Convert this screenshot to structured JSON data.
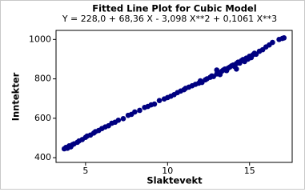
{
  "chart_data": {
    "type": "scatter",
    "title": "Fitted Line Plot for Cubic Model",
    "subtitle": "Y =  228,0 + 68,36 X - 3,098 X**2 + 0,1061 X**3",
    "x_label": "Slaktevekt",
    "y_label": "Inntekter",
    "xlim": [
      3.2,
      17.6
    ],
    "ylim": [
      376,
      1046
    ],
    "xticks": [
      5,
      10,
      15
    ],
    "yticks": [
      400,
      600,
      800,
      1000
    ],
    "grid": false,
    "series": [
      {
        "name": "Inntekter",
        "color": "#000080",
        "x": [
          3.7,
          3.8,
          3.9,
          4.0,
          4.1,
          4.2,
          4.3,
          4.5,
          4.6,
          4.8,
          5.0,
          5.1,
          5.3,
          5.5,
          5.6,
          5.8,
          6.0,
          6.2,
          6.4,
          6.6,
          6.8,
          7.0,
          7.3,
          7.6,
          7.8,
          8.0,
          8.3,
          8.6,
          8.8,
          9.0,
          9.2,
          9.5,
          9.8,
          10.0,
          10.2,
          10.4,
          10.6,
          10.8,
          11.0,
          11.1,
          11.3,
          11.5,
          11.7,
          11.9,
          12.0,
          12.1,
          12.3,
          12.4,
          12.6,
          12.7,
          12.8,
          13.0,
          13.1,
          13.2,
          13.3,
          13.4,
          13.5,
          13.6,
          13.7,
          13.8,
          13.9,
          14.0,
          14.1,
          14.2,
          14.3,
          14.4,
          14.5,
          14.6,
          14.7,
          14.8,
          14.9,
          15.0,
          15.1,
          15.2,
          15.3,
          15.4,
          15.6,
          15.8,
          16.0,
          16.2,
          16.4,
          16.8,
          17.0,
          17.1,
          14.2,
          13.0
        ],
        "values": [
          445,
          452,
          448,
          460,
          455,
          466,
          470,
          478,
          485,
          492,
          503,
          510,
          515,
          525,
          532,
          538,
          548,
          556,
          562,
          575,
          580,
          590,
          598,
          615,
          620,
          632,
          640,
          655,
          660,
          668,
          672,
          690,
          698,
          705,
          712,
          720,
          730,
          738,
          745,
          752,
          758,
          765,
          772,
          778,
          790,
          782,
          795,
          800,
          808,
          815,
          812,
          825,
          832,
          822,
          838,
          845,
          850,
          842,
          855,
          860,
          866,
          870,
          862,
          878,
          885,
          880,
          892,
          898,
          888,
          905,
          900,
          915,
          908,
          922,
          930,
          925,
          940,
          948,
          962,
          972,
          985,
          1000,
          1005,
          1008,
          850,
          845
        ]
      }
    ]
  }
}
